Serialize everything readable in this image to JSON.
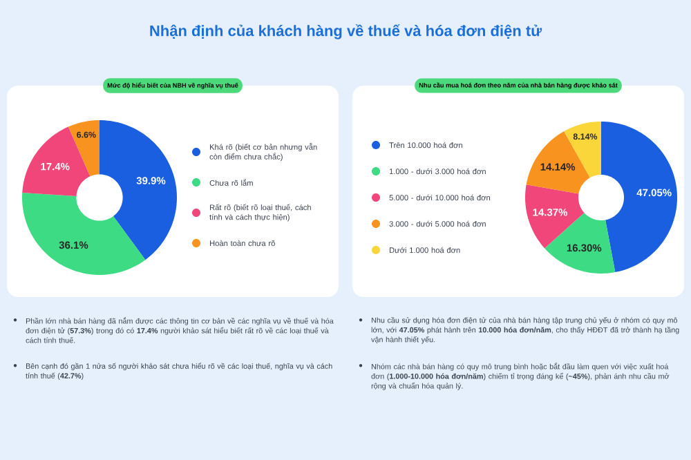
{
  "chart_data": [
    {
      "type": "donut",
      "title": "Nhận định của khách hàng về thuế và hóa đơn điện tử",
      "subtitle": "Mức độ hiểu biết của NBH về nghĩa vụ thuế",
      "categories": [
        "Khá rõ (biết cơ bản nhưng vẫn còn điểm chưa chắc)",
        "Chưa rõ lắm",
        "Rất rõ (biết rõ loại thuế, cách tính và cách thực hiện)",
        "Hoàn toàn chưa rõ"
      ],
      "values": [
        39.9,
        36.1,
        17.4,
        6.6
      ],
      "value_labels": [
        "39.9%",
        "36.1%",
        "17.4%",
        "6.6%"
      ],
      "colors": [
        "#1a5fe0",
        "#3ddc84",
        "#f0467a",
        "#f7931e"
      ],
      "legend": "right",
      "annotations": [
        "Phần lớn nhà bán hàng đã nắm được các thông tin cơ bản về các nghĩa vụ về thuế và hóa đơn điện tử (**57.3%**) trong đó có **17.4%** người khảo sát hiểu biết rất rõ về các loại thuế và cách tính thuế.",
        "Bên cạnh đó gần 1 nửa số người khảo sát chưa hiểu rõ về các loại thuế, nghĩa vụ và cách tính thuế (**42.7%**)"
      ]
    },
    {
      "type": "donut",
      "subtitle": "Nhu cầu mua hoá đơn theo năm của nhà bán hàng được khảo sát",
      "categories": [
        "Trên 10.000 hoá đơn",
        "1.000 - dưới 3.000 hoá đơn",
        "5.000 - dưới 10.000 hoá đơn",
        "3.000 - dưới 5.000 hoá đơn",
        "Dưới 1.000 hoá đơn"
      ],
      "values": [
        47.05,
        16.3,
        14.37,
        14.14,
        8.14
      ],
      "value_labels": [
        "47.05%",
        "16.30%",
        "14.37%",
        "14.14%",
        "8.14%"
      ],
      "colors": [
        "#1a5fe0",
        "#3ddc84",
        "#f0467a",
        "#f7931e",
        "#fbd63a"
      ],
      "legend": "left",
      "annotations": [
        "Nhu cầu sử dụng hóa đơn điện tử của nhà bán hàng tập trung chủ yếu ở nhóm có quy mô lớn, với **47.05%** phát hành trên **10.000 hóa đơn/năm**, cho thấy HĐĐT đã trở thành hạ tầng vận hành thiết yếu.",
        "Nhóm các nhà bán hàng có quy mô trung bình hoặc bắt đầu làm quen với việc xuất hoá đơn (**1.000-10.000 hóa đơn/năm**) chiếm tỉ trọng đáng kể (**~45%**), phản ánh nhu cầu mở rộng và chuẩn hóa quản lý."
      ]
    }
  ]
}
